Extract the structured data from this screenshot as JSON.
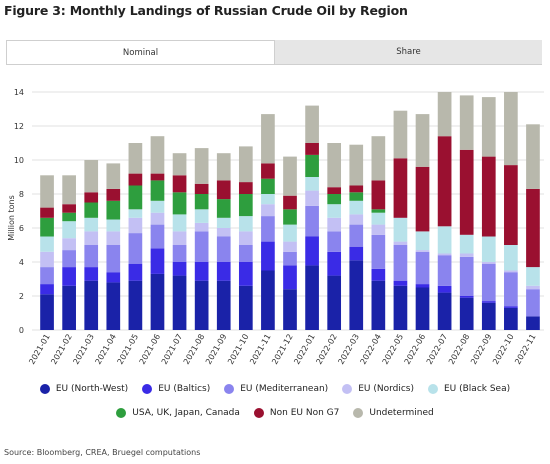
{
  "figure_title": "Figure 3: Monthly Landings of Russian Crude Oil by Region",
  "tabs": [
    {
      "label": "Nominal",
      "active": true
    },
    {
      "label": "Share",
      "active": false
    }
  ],
  "source": "Source: Bloomberg, CREA, Bruegel computations",
  "colors": {
    "eu_north_west": "#1a22a8",
    "eu_baltics": "#3a2be6",
    "eu_mediterranean": "#8a84ee",
    "eu_nordics": "#c3c0f4",
    "eu_black_sea": "#b8e2ea",
    "usa_uk_japan_canada": "#2e9e3e",
    "non_eu_non_g7": "#9a1030",
    "undetermined": "#b8b8ac"
  },
  "chart_data": {
    "type": "bar",
    "stacked": true,
    "ylabel": "Million tons",
    "ylim": [
      0,
      14
    ],
    "yticks": [
      0,
      2,
      4,
      6,
      8,
      10,
      12,
      14
    ],
    "categories": [
      "2021-01",
      "2021-02",
      "2021-03",
      "2021-04",
      "2021-05",
      "2021-06",
      "2021-07",
      "2021-08",
      "2021-09",
      "2021-10",
      "2021-11",
      "2021-12",
      "2022-01",
      "2022-02",
      "2022-03",
      "2022-04",
      "2022-05",
      "2022-06",
      "2022-07",
      "2022-08",
      "2022-09",
      "2022-10",
      "2022-11"
    ],
    "series": [
      {
        "name": "EU (North-West)",
        "color_key": "eu_north_west",
        "values": [
          2.1,
          2.6,
          2.9,
          2.8,
          2.9,
          3.3,
          3.2,
          2.9,
          2.9,
          2.6,
          3.5,
          2.4,
          3.8,
          3.2,
          4.1,
          2.9,
          2.6,
          2.5,
          2.2,
          1.9,
          1.6,
          1.3,
          0.8
        ]
      },
      {
        "name": "EU (Baltics)",
        "color_key": "eu_baltics",
        "values": [
          0.6,
          1.1,
          0.8,
          0.6,
          1.0,
          1.5,
          0.8,
          1.1,
          1.1,
          1.4,
          1.7,
          1.4,
          1.7,
          1.4,
          0.8,
          0.7,
          0.3,
          0.2,
          0.4,
          0.1,
          0.1,
          0.1,
          0.0
        ]
      },
      {
        "name": "EU (Mediterranean)",
        "color_key": "eu_mediterranean",
        "values": [
          1.0,
          1.0,
          1.3,
          1.6,
          1.8,
          1.4,
          1.0,
          1.8,
          1.5,
          1.0,
          1.5,
          0.8,
          1.8,
          1.2,
          1.3,
          2.0,
          2.1,
          1.9,
          1.8,
          2.3,
          2.2,
          2.0,
          1.6
        ]
      },
      {
        "name": "EU (Nordics)",
        "color_key": "eu_nordics",
        "values": [
          0.9,
          0.7,
          0.8,
          0.8,
          0.9,
          0.7,
          0.8,
          0.5,
          0.5,
          0.8,
          0.7,
          0.6,
          0.9,
          0.8,
          0.6,
          0.6,
          0.2,
          0.1,
          0.1,
          0.2,
          0.1,
          0.1,
          0.2
        ]
      },
      {
        "name": "EU (Black Sea)",
        "color_key": "eu_black_sea",
        "values": [
          0.9,
          1.0,
          0.8,
          0.7,
          0.5,
          0.7,
          1.0,
          0.8,
          0.6,
          0.9,
          0.6,
          1.0,
          0.8,
          0.8,
          0.8,
          0.7,
          1.4,
          1.1,
          1.6,
          1.1,
          1.5,
          1.5,
          1.1
        ]
      },
      {
        "name": "USA, UK, Japan, Canada",
        "color_key": "usa_uk_japan_canada",
        "values": [
          1.1,
          0.5,
          0.9,
          1.1,
          1.4,
          1.2,
          1.3,
          0.9,
          1.1,
          1.3,
          0.9,
          0.9,
          1.3,
          0.6,
          0.5,
          0.2,
          0.0,
          0.0,
          0.0,
          0.0,
          0.0,
          0.0,
          0.0
        ]
      },
      {
        "name": "Non EU Non G7",
        "color_key": "non_eu_non_g7",
        "values": [
          0.6,
          0.5,
          0.6,
          0.7,
          0.7,
          0.4,
          1.0,
          0.6,
          1.1,
          0.7,
          0.9,
          0.8,
          0.7,
          0.4,
          0.4,
          1.7,
          3.5,
          3.8,
          5.3,
          5.0,
          4.7,
          4.7,
          4.6
        ]
      },
      {
        "name": "Undetermined",
        "color_key": "undetermined",
        "values": [
          1.9,
          1.7,
          1.9,
          1.5,
          1.8,
          2.2,
          1.3,
          2.1,
          1.6,
          2.1,
          2.9,
          2.3,
          2.2,
          2.6,
          2.4,
          2.6,
          2.8,
          3.1,
          2.6,
          3.2,
          3.5,
          4.3,
          3.8
        ]
      }
    ],
    "legend": {
      "rows": [
        [
          "EU (North-West)",
          "EU (Baltics)",
          "EU (Mediterranean)",
          "EU (Nordics)",
          "EU (Black Sea)"
        ],
        [
          "USA, UK, Japan, Canada",
          "Non EU Non G7",
          "Undetermined"
        ]
      ]
    }
  }
}
